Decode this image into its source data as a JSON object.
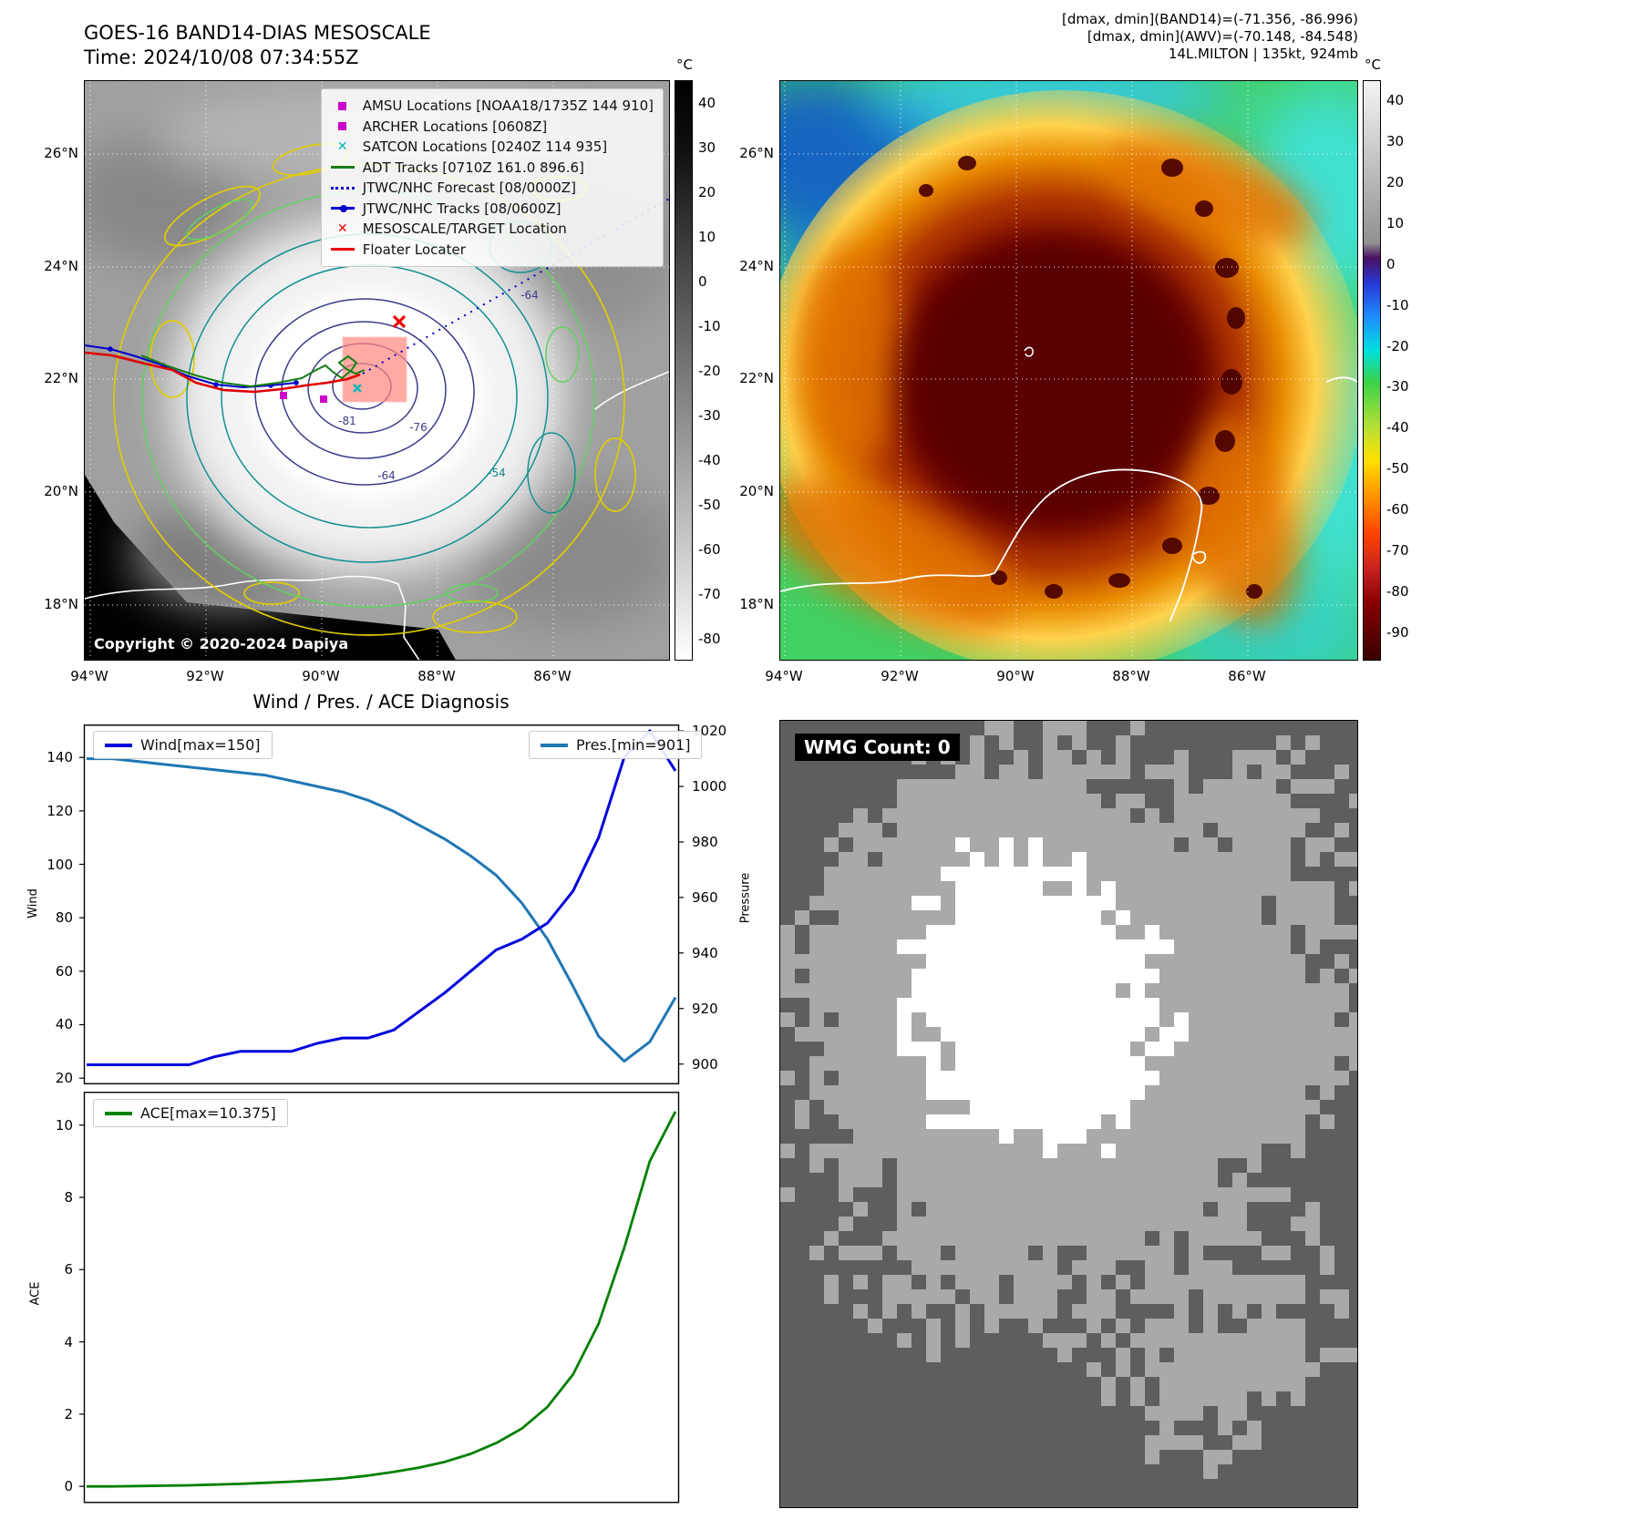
{
  "top_left": {
    "title": "GOES-16 BAND14-DIAS MESOSCALE",
    "subtitle": "Time: 2024/10/08 07:34:55Z",
    "copyright": "Copyright © 2020-2024 Dapiya",
    "colorbar": {
      "unit": "°C",
      "ticks": [
        40,
        30,
        20,
        10,
        0,
        -10,
        -20,
        -30,
        -40,
        -50,
        -60,
        -70,
        -80
      ]
    },
    "lat_ticks": [
      "26°N",
      "24°N",
      "22°N",
      "20°N",
      "18°N"
    ],
    "lon_ticks": [
      "94°W",
      "92°W",
      "90°W",
      "88°W",
      "86°W"
    ],
    "contour_labels": [
      {
        "text": "-81",
        "color": "#3b3b8c"
      },
      {
        "text": "-76",
        "color": "#3b3b8c"
      },
      {
        "text": "-64",
        "color": "#3b3b8c"
      },
      {
        "text": "-64",
        "color": "#3b3b8c"
      },
      {
        "text": "-54",
        "color": "#118888"
      }
    ],
    "legend_items": [
      {
        "label": "AMSU Locations [NOAA18/1735Z 144 910]",
        "marker": "square",
        "color": "#cc00cc"
      },
      {
        "label": "ARCHER Locations [0608Z]",
        "marker": "square",
        "color": "#cc00cc"
      },
      {
        "label": "SATCON Locations [0240Z 114 935]",
        "marker": "x",
        "color": "#00bbbb"
      },
      {
        "label": "ADT Tracks [0710Z 161.0 896.6]",
        "marker": "line",
        "color": "#1a7a1a"
      },
      {
        "label": "JTWC/NHC Forecast [08/0000Z]",
        "marker": "dotted",
        "color": "#0000cc"
      },
      {
        "label": "JTWC/NHC Tracks [08/0600Z]",
        "marker": "line-dot",
        "color": "#0000cc"
      },
      {
        "label": "MESOSCALE/TARGET Location",
        "marker": "x",
        "color": "#ee0000"
      },
      {
        "label": "Floater Locater",
        "marker": "line",
        "color": "#ee0000"
      }
    ]
  },
  "top_right": {
    "header_lines": [
      "[dmax, dmin](BAND14)=(-71.356, -86.996)",
      "[dmax, dmin](AWV)=(-70.148, -84.548)",
      "14L.MILTON | 135kt, 924mb"
    ],
    "colorbar": {
      "unit": "°C",
      "ticks": [
        40,
        30,
        20,
        10,
        0,
        -10,
        -20,
        -30,
        -40,
        -50,
        -60,
        -70,
        -80,
        -90
      ]
    },
    "lat_ticks": [
      "26°N",
      "24°N",
      "22°N",
      "20°N",
      "18°N"
    ],
    "lon_ticks": [
      "94°W",
      "92°W",
      "90°W",
      "88°W",
      "86°W"
    ]
  },
  "bottom_left": {
    "title": "Wind / Pres. / ACE Diagnosis"
  },
  "bottom_right": {
    "label": "WMG Count: 0"
  },
  "chart_data": [
    {
      "type": "line",
      "title": "Wind / Pres. / ACE Diagnosis",
      "x": [
        0,
        1,
        2,
        3,
        4,
        5,
        6,
        7,
        8,
        9,
        10,
        11,
        12,
        13,
        14,
        15,
        16,
        17,
        18,
        19,
        20,
        21,
        22,
        23
      ],
      "series": [
        {
          "name": "Wind[max=150]",
          "color": "#0000dd",
          "axis": "left",
          "values": [
            25,
            25,
            25,
            25,
            25,
            28,
            30,
            30,
            30,
            33,
            35,
            35,
            38,
            45,
            52,
            60,
            68,
            72,
            78,
            90,
            110,
            140,
            150,
            135
          ]
        },
        {
          "name": "Pres.[min=901]",
          "color": "#1f77b4",
          "axis": "right",
          "values": [
            1010,
            1010,
            1009,
            1008,
            1007,
            1006,
            1005,
            1004,
            1002,
            1000,
            998,
            995,
            991,
            986,
            981,
            975,
            968,
            958,
            945,
            928,
            910,
            901,
            908,
            924
          ]
        }
      ],
      "ylabel_left": "Wind",
      "ylabel_right": "Pressure",
      "ylim_left": [
        18,
        152
      ],
      "ylim_right": [
        893,
        1022
      ],
      "yticks_left": [
        20,
        40,
        60,
        80,
        100,
        120,
        140
      ],
      "yticks_right": [
        900,
        920,
        940,
        960,
        980,
        1000,
        1020
      ],
      "grid": false,
      "legend_position": "upper-left and upper-right"
    },
    {
      "type": "line",
      "x": [
        0,
        1,
        2,
        3,
        4,
        5,
        6,
        7,
        8,
        9,
        10,
        11,
        12,
        13,
        14,
        15,
        16,
        17,
        18,
        19,
        20,
        21,
        22,
        23
      ],
      "series": [
        {
          "name": "ACE[max=10.375]",
          "color": "#008000",
          "values": [
            0,
            0,
            0.01,
            0.02,
            0.03,
            0.05,
            0.07,
            0.1,
            0.13,
            0.17,
            0.22,
            0.3,
            0.4,
            0.52,
            0.68,
            0.9,
            1.2,
            1.6,
            2.2,
            3.1,
            4.5,
            6.6,
            9.0,
            10.375
          ]
        }
      ],
      "ylabel": "ACE",
      "ylim": [
        -0.45,
        10.9
      ],
      "yticks": [
        0,
        2,
        4,
        6,
        8,
        10
      ],
      "grid": false,
      "legend_position": "upper-left"
    }
  ]
}
